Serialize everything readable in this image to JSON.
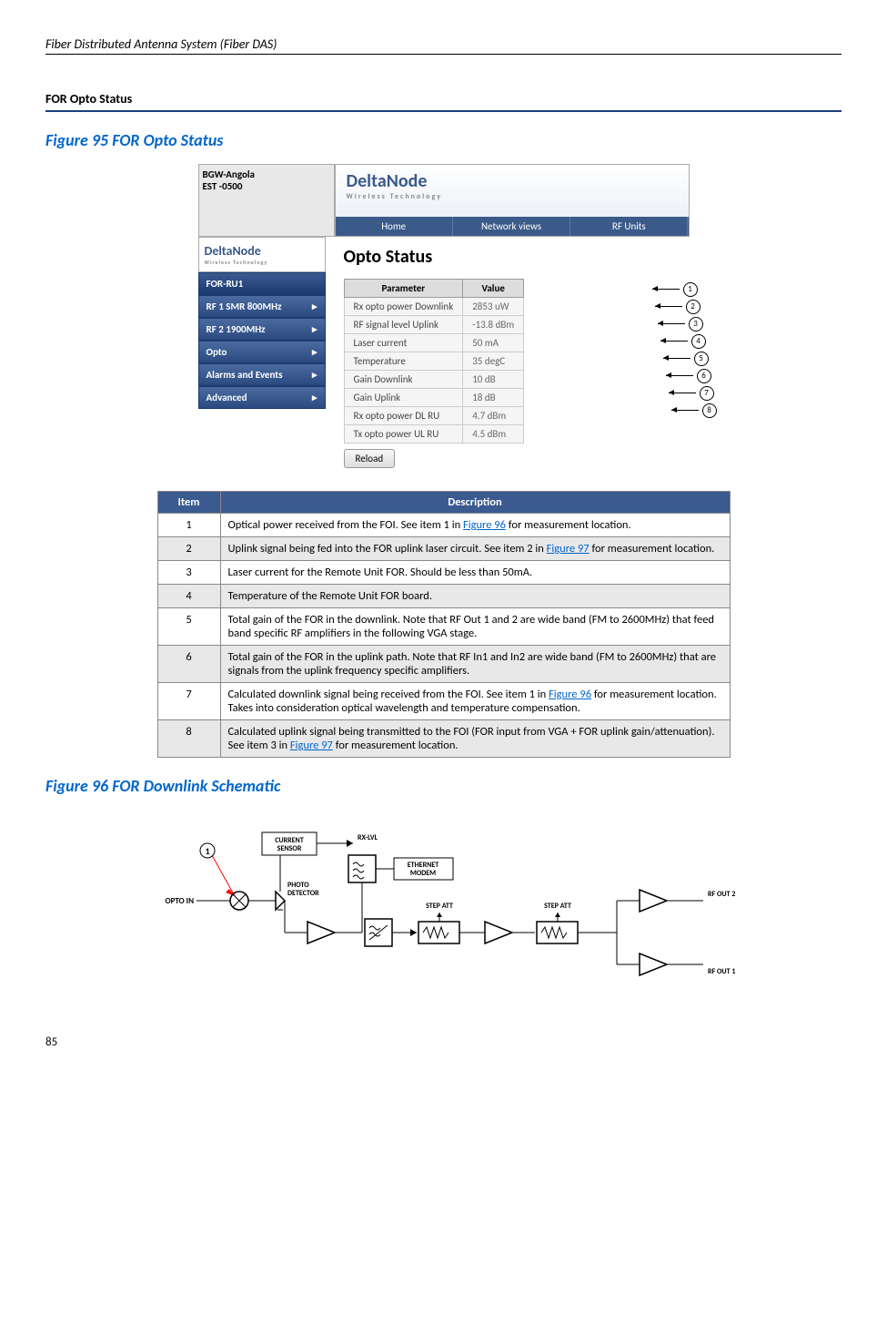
{
  "header": "Fiber Distributed Antenna System (Fiber DAS)",
  "sectionTitle": "FOR Opto Status",
  "fig95": "Figure 95    FOR Opto Status",
  "fig96": "Figure 96    FOR Downlink Schematic",
  "topLeft": {
    "l1": "BGW-Angola",
    "l2": "EST -0500"
  },
  "logo": "DeltaNode",
  "logoSub": "Wireless   Technology",
  "navTabs": [
    "Home",
    "Network views",
    "RF Units"
  ],
  "sideMenu": [
    "FOR-RU1",
    "RF 1 SMR 800MHz",
    "RF 2 1900MHz",
    "Opto",
    "Alarms and Events",
    "Advanced"
  ],
  "contentTitle": "Opto Status",
  "optoHeaders": [
    "Parameter",
    "Value"
  ],
  "optoRows": [
    [
      "Rx opto power Downlink",
      "2853 uW"
    ],
    [
      "RF signal level Uplink",
      "-13.8 dBm"
    ],
    [
      "Laser current",
      "50 mA"
    ],
    [
      "Temperature",
      "35 degC"
    ],
    [
      "Gain Downlink",
      "10 dB"
    ],
    [
      "Gain Uplink",
      "18 dB"
    ],
    [
      "Rx opto power DL RU",
      "4.7 dBm"
    ],
    [
      "Tx opto power UL RU",
      "4.5 dBm"
    ]
  ],
  "reload": "Reload",
  "descHeaders": [
    "Item",
    "Description"
  ],
  "descRows": [
    {
      "n": "1",
      "pre": "Optical power received from the FOI. See item 1 in ",
      "link": "Figure 96",
      "post": " for measurement location."
    },
    {
      "n": "2",
      "pre": "Uplink signal being fed into the FOR uplink laser circuit. See item 2 in ",
      "link": "Figure 97",
      "post": " for measurement location."
    },
    {
      "n": "3",
      "pre": "Laser current for the Remote Unit FOR. Should be less than 50mA.",
      "link": "",
      "post": ""
    },
    {
      "n": "4",
      "pre": "Temperature of the Remote Unit FOR board.",
      "link": "",
      "post": ""
    },
    {
      "n": "5",
      "pre": "Total gain of the FOR in the downlink. Note that RF Out 1 and 2 are wide band (FM to 2600MHz) that feed band specific RF amplifiers in the following VGA stage.",
      "link": "",
      "post": ""
    },
    {
      "n": "6",
      "pre": "Total gain of the FOR in the uplink path. Note that RF In1 and In2 are wide band (FM to 2600MHz) that are signals from the uplink frequency specific amplifiers.",
      "link": "",
      "post": ""
    },
    {
      "n": "7",
      "pre": "Calculated downlink signal being received from the FOI.   See item 1 in ",
      "link": "Figure 96",
      "post": " for measurement location. Takes into consideration optical wavelength and temperature compensation."
    },
    {
      "n": "8",
      "pre": "Calculated uplink signal being transmitted to the FOI (FOR input from VGA + FOR uplink gain/attenuation). See item 3 in ",
      "link": "Figure 97",
      "post": " for measurement location."
    }
  ],
  "schematic": {
    "optoIn": "OPTO IN",
    "current": "CURRENT\nSENSOR",
    "rxlvl": "RX-LVL",
    "photo": "PHOTO\nDETECTOR",
    "eth": "ETHERNET\nMODEM",
    "step1": "STEP ATT",
    "step2": "STEP ATT",
    "rfout1": "RF OUT 1",
    "rfout2": "RF OUT 2"
  },
  "pageNum": "85"
}
